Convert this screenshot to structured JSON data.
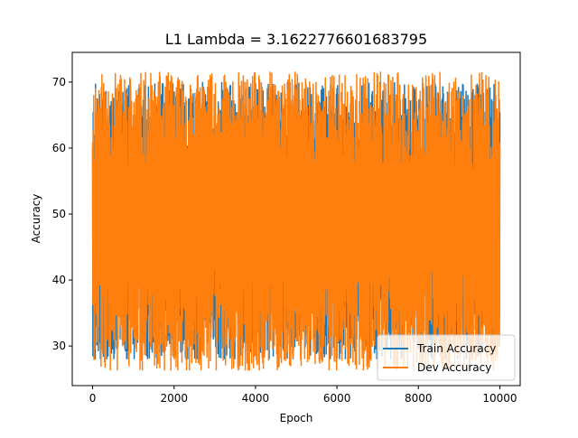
{
  "chart_data": {
    "type": "line",
    "title": "L1 Lambda = 3.1622776601683795",
    "xlabel": "Epoch",
    "ylabel": "Accuracy",
    "xlim": [
      -500,
      10500
    ],
    "ylim": [
      24,
      74.5
    ],
    "x_ticks": [
      0,
      2000,
      4000,
      6000,
      8000,
      10000
    ],
    "y_ticks": [
      30,
      40,
      50,
      60,
      70
    ],
    "grid": false,
    "legend_position": "lower-right",
    "x_range": [
      0,
      10000
    ],
    "center": 49,
    "series": [
      {
        "name": "Train Accuracy",
        "color": "#1f77b4",
        "low": 28,
        "high": 71,
        "seed": 7
      },
      {
        "name": "Dev Accuracy",
        "color": "#ff7f0e",
        "low": 26.3,
        "high": 72.4,
        "seed": 11
      }
    ]
  }
}
